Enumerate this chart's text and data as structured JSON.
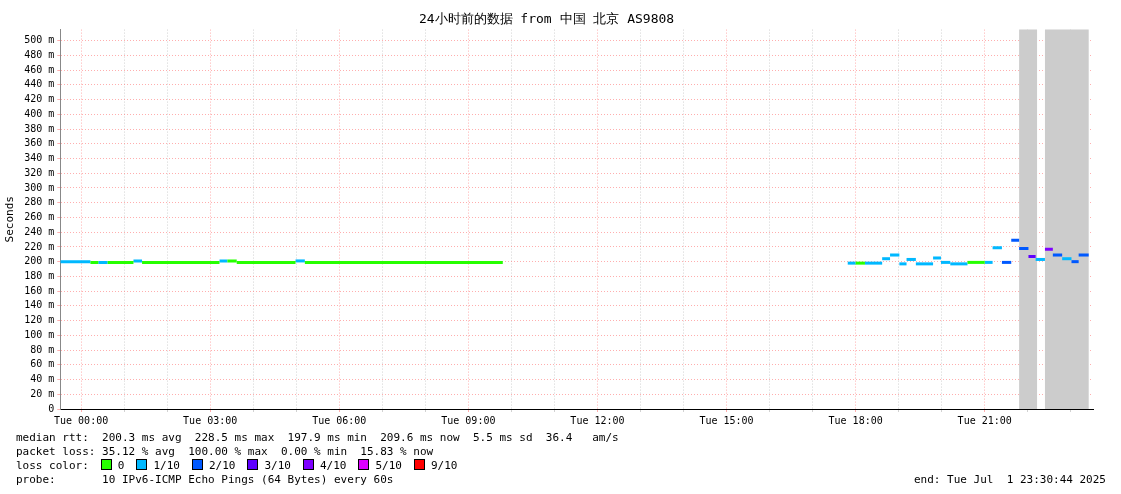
{
  "chart_data": {
    "type": "step",
    "title": "24小时前的数据 from 中国 北京 AS9808",
    "ylabel": "Seconds",
    "legend_title": "loss color:",
    "legend": "bottom",
    "grid": true,
    "xlim": [
      "2025-06-30T23:31",
      "2025-07-01T23:31"
    ],
    "xticks": [
      {
        "value": "2025-07-01T00:00",
        "label": "Tue 00:00"
      },
      {
        "value": "2025-07-01T01:00",
        "label": null
      },
      {
        "value": "2025-07-01T02:00",
        "label": null
      },
      {
        "value": "2025-07-01T03:00",
        "label": "Tue 03:00"
      },
      {
        "value": "2025-07-01T04:00",
        "label": null
      },
      {
        "value": "2025-07-01T05:00",
        "label": null
      },
      {
        "value": "2025-07-01T06:00",
        "label": "Tue 06:00"
      },
      {
        "value": "2025-07-01T07:00",
        "label": null
      },
      {
        "value": "2025-07-01T08:00",
        "label": null
      },
      {
        "value": "2025-07-01T09:00",
        "label": "Tue 09:00"
      },
      {
        "value": "2025-07-01T10:00",
        "label": null
      },
      {
        "value": "2025-07-01T11:00",
        "label": null
      },
      {
        "value": "2025-07-01T12:00",
        "label": "Tue 12:00"
      },
      {
        "value": "2025-07-01T13:00",
        "label": null
      },
      {
        "value": "2025-07-01T14:00",
        "label": null
      },
      {
        "value": "2025-07-01T15:00",
        "label": "Tue 15:00"
      },
      {
        "value": "2025-07-01T16:00",
        "label": null
      },
      {
        "value": "2025-07-01T17:00",
        "label": null
      },
      {
        "value": "2025-07-01T18:00",
        "label": "Tue 18:00"
      },
      {
        "value": "2025-07-01T19:00",
        "label": null
      },
      {
        "value": "2025-07-01T20:00",
        "label": null
      },
      {
        "value": "2025-07-01T21:00",
        "label": "Tue 21:00"
      },
      {
        "value": "2025-07-01T22:00",
        "label": null
      },
      {
        "value": "2025-07-01T23:00",
        "label": null
      }
    ],
    "ylim": [
      0,
      515
    ],
    "yticks": [
      0,
      {
        "value": 20,
        "label": "20 m"
      },
      {
        "value": 40,
        "label": "40 m"
      },
      {
        "value": 60,
        "label": "60 m"
      },
      {
        "value": 80,
        "label": "80 m"
      },
      {
        "value": 100,
        "label": "100 m"
      },
      {
        "value": 120,
        "label": "120 m"
      },
      {
        "value": 140,
        "label": "140 m"
      },
      {
        "value": 160,
        "label": "160 m"
      },
      {
        "value": 180,
        "label": "180 m"
      },
      {
        "value": 200,
        "label": "200 m"
      },
      {
        "value": 220,
        "label": "220 m"
      },
      {
        "value": 240,
        "label": "240 m"
      },
      {
        "value": 260,
        "label": "260 m"
      },
      {
        "value": 280,
        "label": "280 m"
      },
      {
        "value": 300,
        "label": "300 m"
      },
      {
        "value": 320,
        "label": "320 m"
      },
      {
        "value": 340,
        "label": "340 m"
      },
      {
        "value": 360,
        "label": "360 m"
      },
      {
        "value": 380,
        "label": "380 m"
      },
      {
        "value": 400,
        "label": "400 m"
      },
      {
        "value": 420,
        "label": "420 m"
      },
      {
        "value": 440,
        "label": "440 m"
      },
      {
        "value": 460,
        "label": "460 m"
      },
      {
        "value": 480,
        "label": "480 m"
      },
      {
        "value": 500,
        "label": "500 m"
      }
    ],
    "bands": [
      {
        "axis": "x",
        "from": "2025-07-01T21:48",
        "to": "2025-07-01T22:13",
        "color": "#cccccc"
      },
      {
        "axis": "x",
        "from": "2025-07-01T22:24",
        "to": "2025-07-01T23:25",
        "color": "#cccccc"
      }
    ],
    "series": [
      {
        "name": "0",
        "color": "#26ff00",
        "x": [
          "2025-07-01T00:13",
          "2025-07-01T00:24",
          "2025-07-01T00:37",
          "2025-07-01T01:13",
          "2025-07-01T01:25",
          "2025-07-01T03:13",
          "2025-07-01T03:24",
          "2025-07-01T03:37",
          "2025-07-01T03:37",
          "2025-07-01T04:59",
          "2025-07-01T05:12",
          "2025-07-01T09:48",
          "2025-07-01T18:00",
          "2025-07-01T18:13",
          "2025-07-01T20:36",
          "2025-07-01T21:00"
        ],
        "values": [
          199,
          199,
          199,
          199,
          199,
          199,
          201,
          201,
          199,
          199,
          199,
          199,
          198,
          198,
          199,
          199
        ]
      },
      {
        "name": "1/10",
        "color": "#00b8ff",
        "x": [
          "2025-06-30T23:31",
          "2025-07-01T00:13",
          "2025-07-01T00:24",
          "2025-07-01T00:37",
          "2025-07-01T01:13",
          "2025-07-01T01:25",
          "2025-07-01T03:13",
          "2025-07-01T03:24",
          "2025-07-01T04:59",
          "2025-07-01T05:12",
          "2025-07-01T17:49",
          "2025-07-01T18:00",
          "2025-07-01T18:13",
          "2025-07-01T18:37",
          "2025-07-01T18:37",
          "2025-07-01T18:48",
          "2025-07-01T18:48",
          "2025-07-01T19:01",
          "2025-07-01T19:01",
          "2025-07-01T19:11",
          "2025-07-01T19:11",
          "2025-07-01T19:24",
          "2025-07-01T19:24",
          "2025-07-01T19:48",
          "2025-07-01T19:48",
          "2025-07-01T19:59",
          "2025-07-01T19:59",
          "2025-07-01T20:12",
          "2025-07-01T20:12",
          "2025-07-01T20:36",
          "2025-07-01T21:00",
          "2025-07-01T21:11",
          "2025-07-01T21:11",
          "2025-07-01T21:24",
          "2025-07-01T22:11",
          "2025-07-01T22:24",
          "2025-07-01T22:48",
          "2025-07-01T23:01"
        ],
        "values": [
          200,
          200,
          199,
          199,
          201,
          201,
          201,
          201,
          201,
          201,
          198,
          198,
          198,
          198,
          204,
          204,
          209,
          209,
          197,
          197,
          203,
          203,
          197,
          197,
          205,
          205,
          199,
          199,
          197,
          197,
          199,
          199,
          219,
          219,
          203,
          203,
          204,
          204
        ]
      },
      {
        "name": "2/10",
        "color": "#0059ff",
        "x": [
          "2025-07-01T21:24",
          "2025-07-01T21:37",
          "2025-07-01T21:37",
          "2025-07-01T21:48",
          "2025-07-01T21:48",
          "2025-07-01T22:01",
          "2025-07-01T22:35",
          "2025-07-01T22:48",
          "2025-07-01T23:01",
          "2025-07-01T23:11",
          "2025-07-01T23:11",
          "2025-07-01T23:25"
        ],
        "values": [
          199,
          199,
          229,
          229,
          218,
          218,
          209,
          209,
          200,
          200,
          209,
          209
        ]
      },
      {
        "name": "3/10",
        "color": "#5e00ff",
        "x": [
          "2025-07-01T22:01",
          "2025-07-01T22:11"
        ],
        "values": [
          207,
          207
        ]
      },
      {
        "name": "4/10",
        "color": "#7e00ff",
        "x": [
          "2025-07-01T22:24",
          "2025-07-01T22:35"
        ],
        "values": [
          217,
          217
        ]
      },
      {
        "name": "5/10",
        "color": "#dd00ff"
      },
      {
        "name": "9/10",
        "color": "#ff0000"
      }
    ],
    "annotations": [
      "median rtt:  200.3 ms avg  228.5 ms max  197.9 ms min  209.6 ms now  5.5 ms sd  36.4   am/s",
      "packet loss: 35.12 % avg  100.00 % max  0.00 % min  15.83 % now",
      "probe:       10 IPv6-ICMP Echo Pings (64 Bytes) every 60s",
      "end: Tue Jul  1 23:30:44 2025"
    ]
  }
}
